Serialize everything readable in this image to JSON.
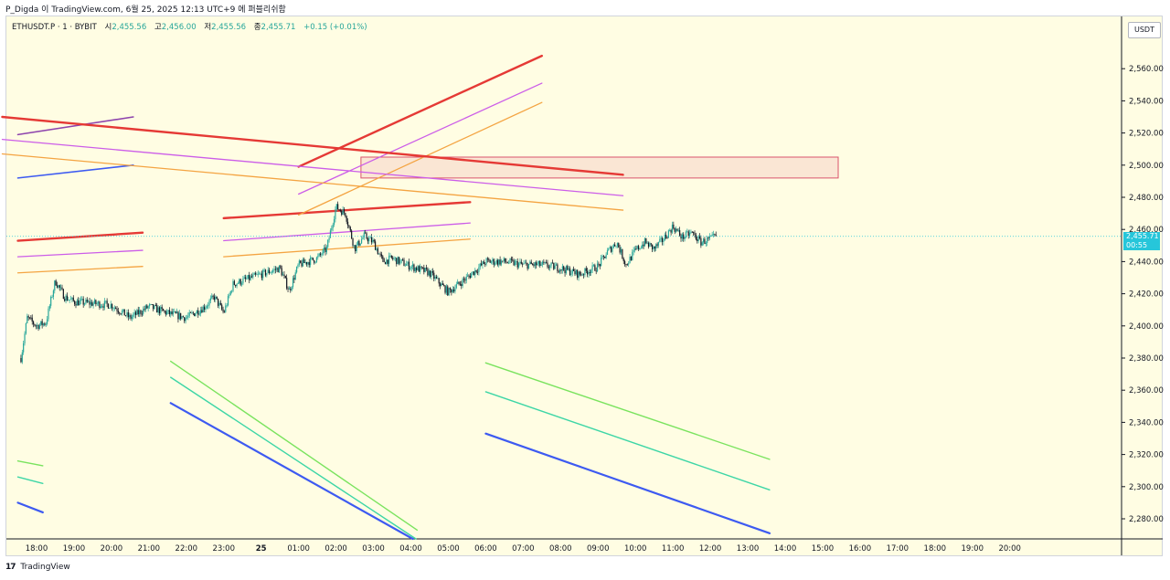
{
  "caption": "P_Digda 이 TradingView.com, 6월 25, 2025 12:13 UTC+9 에 퍼블리쉬함",
  "legend": {
    "symbol": "ETHUSDT.P · 1 · BYBIT",
    "open_label": "시",
    "open": "2,455.56",
    "high_label": "고",
    "high": "2,456.00",
    "low_label": "저",
    "low": "2,455.56",
    "close_label": "종",
    "close": "2,455.71",
    "change": "+0.15 (+0.01%)"
  },
  "currency_badge": "USDT",
  "last_price_tag": {
    "price": "2,455.71",
    "countdown": "00:55"
  },
  "footer": {
    "logo": "17",
    "brand": "TradingView"
  },
  "colors": {
    "background": "#fffde3",
    "up": "#26a69a",
    "down": "#131722",
    "last_price": "#26c6da",
    "red_line": "#e53935",
    "violet_line": "#cc5de8",
    "orange_line": "#f4a442",
    "green_line": "#7ae35e",
    "teal_line": "#3dd6a6",
    "blue_line": "#3d5af1",
    "purple_line": "#8e44ad",
    "zone_border": "#d9546c"
  },
  "chart_data": {
    "type": "candlestick",
    "symbol": "ETHUSDT.P",
    "interval": "1",
    "exchange": "BYBIT",
    "y_axis": {
      "ylim": [
        2265,
        2585
      ],
      "ticks": [
        "2,280.00",
        "2,300.00",
        "2,320.00",
        "2,340.00",
        "2,360.00",
        "2,380.00",
        "2,400.00",
        "2,420.00",
        "2,440.00",
        "2,460.00",
        "2,480.00",
        "2,500.00",
        "2,520.00",
        "2,540.00",
        "2,560.00"
      ]
    },
    "x_axis": {
      "ticks": [
        "18:00",
        "19:00",
        "20:00",
        "21:00",
        "22:00",
        "23:00",
        "25",
        "01:00",
        "02:00",
        "03:00",
        "04:00",
        "05:00",
        "06:00",
        "07:00",
        "08:00",
        "09:00",
        "10:00",
        "11:00",
        "12:00",
        "13:00",
        "14:00",
        "15:00",
        "16:00",
        "17:00",
        "18:00",
        "19:00",
        "20:00"
      ]
    },
    "price_path": [
      [
        "17:35",
        2380
      ],
      [
        "17:45",
        2405
      ],
      [
        "18:00",
        2400
      ],
      [
        "18:15",
        2402
      ],
      [
        "18:30",
        2428
      ],
      [
        "18:45",
        2418
      ],
      [
        "19:00",
        2415
      ],
      [
        "19:30",
        2414
      ],
      [
        "20:00",
        2413
      ],
      [
        "20:30",
        2405
      ],
      [
        "21:00",
        2412
      ],
      [
        "21:30",
        2408
      ],
      [
        "22:00",
        2405
      ],
      [
        "22:30",
        2412
      ],
      [
        "22:45",
        2418
      ],
      [
        "23:00",
        2408
      ],
      [
        "23:15",
        2426
      ],
      [
        "23:30",
        2428
      ],
      [
        "00:00",
        2432
      ],
      [
        "00:30",
        2436
      ],
      [
        "00:45",
        2422
      ],
      [
        "01:00",
        2438
      ],
      [
        "01:30",
        2442
      ],
      [
        "01:45",
        2448
      ],
      [
        "02:00",
        2474
      ],
      [
        "02:15",
        2470
      ],
      [
        "02:30",
        2448
      ],
      [
        "02:45",
        2456
      ],
      [
        "03:00",
        2452
      ],
      [
        "03:15",
        2440
      ],
      [
        "03:30",
        2442
      ],
      [
        "04:00",
        2437
      ],
      [
        "04:30",
        2433
      ],
      [
        "05:00",
        2421
      ],
      [
        "05:30",
        2430
      ],
      [
        "06:00",
        2440
      ],
      [
        "06:30",
        2440
      ],
      [
        "07:00",
        2438
      ],
      [
        "07:30",
        2438
      ],
      [
        "08:00",
        2436
      ],
      [
        "08:30",
        2432
      ],
      [
        "09:00",
        2437
      ],
      [
        "09:15",
        2446
      ],
      [
        "09:30",
        2452
      ],
      [
        "09:45",
        2438
      ],
      [
        "10:00",
        2447
      ],
      [
        "10:15",
        2452
      ],
      [
        "10:30",
        2448
      ],
      [
        "10:45",
        2454
      ],
      [
        "11:00",
        2462
      ],
      [
        "11:15",
        2455
      ],
      [
        "11:30",
        2458
      ],
      [
        "11:45",
        2452
      ],
      [
        "12:00",
        2454
      ],
      [
        "12:10",
        2455.71
      ]
    ],
    "last_price": 2455.71,
    "open": 2455.56,
    "high": 2456.0,
    "low": 2455.56,
    "close": 2455.71,
    "change": 0.15,
    "change_pct": 0.01,
    "drawings": {
      "long_lines": [
        {
          "color": "purple",
          "from": [
            "17:30",
            2519
          ],
          "to": [
            "20:35",
            2530
          ]
        },
        {
          "color": "blue",
          "from": [
            "17:30",
            2492
          ],
          "to": [
            "20:35",
            2500
          ]
        }
      ],
      "channels": [
        {
          "start": "17:30",
          "end": "20:50",
          "red": [
            2453,
            2458
          ],
          "violet": [
            2443,
            2447
          ],
          "orange": [
            2433,
            2437
          ]
        },
        {
          "start": "23:00",
          "end": "05:35",
          "red": [
            2467,
            2477
          ],
          "violet": [
            2453,
            2464
          ],
          "orange": [
            2443,
            2454
          ]
        },
        {
          "start": "01:00",
          "end": "07:30",
          "red": [
            2499,
            2568
          ],
          "violet": [
            2482,
            2551
          ],
          "orange": [
            2469,
            2539
          ]
        },
        {
          "start": "09:40",
          "end": "17:05",
          "red": [
            2494,
            2530
          ],
          "violet": [
            2481,
            2516
          ],
          "orange": [
            2472,
            2507
          ]
        }
      ],
      "down_channels": [
        {
          "start": "17:30",
          "end": "18:10",
          "green": [
            2316,
            2313
          ],
          "teal": [
            2306,
            2302
          ],
          "blue": [
            2290,
            2284
          ]
        },
        {
          "start": "21:35",
          "end": "04:10",
          "green": [
            2378,
            2273
          ],
          "teal": [
            2368,
            2267
          ],
          "blue": [
            2352,
            2266
          ]
        },
        {
          "start": "06:00",
          "end": "13:35",
          "green": [
            2377,
            2317
          ],
          "teal": [
            2359,
            2298
          ],
          "blue": [
            2333,
            2271
          ]
        }
      ],
      "zone": {
        "from": [
          "02:40",
          2505
        ],
        "to": [
          "15:25",
          2492
        ]
      }
    }
  }
}
